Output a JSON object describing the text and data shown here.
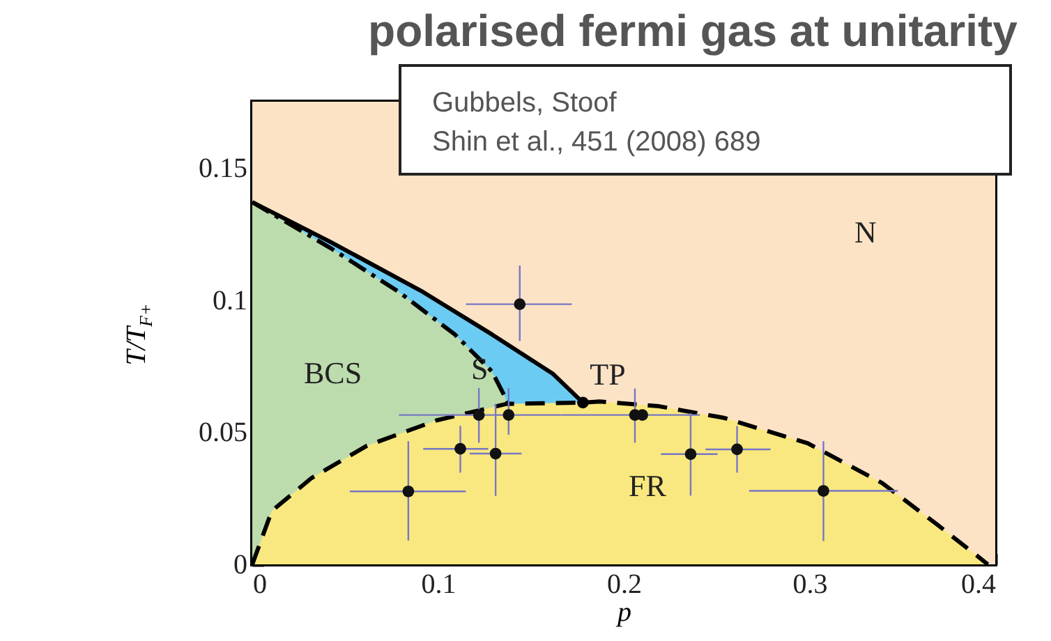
{
  "chart_data": {
    "type": "scatter",
    "title": "polarised fermi gas at unitarity",
    "xlabel": "p",
    "ylabel": "T/T$_{F+}$",
    "xlim": [
      0,
      0.4
    ],
    "ylim": [
      0,
      0.175
    ],
    "xticks": [
      0,
      0.1,
      0.2,
      0.3,
      0.4
    ],
    "yticks": [
      0,
      0.05,
      0.1,
      0.15
    ],
    "grid": false,
    "bands": [
      {
        "axis": "y",
        "from": 0,
        "to": 0.175,
        "color": "#fde3c6"
      }
    ],
    "series": [
      {
        "type": "area",
        "color": "#6ccbf2",
        "line_style": "solid",
        "x": [
          0,
          0.042,
          0.092,
          0.129,
          0.162,
          0.178
        ],
        "values": [
          0.137,
          0.122,
          0.103,
          0.087,
          0.072,
          0.0612
        ]
      },
      {
        "type": "area",
        "color": "#bcdcae",
        "line_style": "dotted",
        "x": [
          0,
          0.042,
          0.079,
          0.109,
          0.129,
          0.138
        ],
        "values": [
          0.137,
          0.1197,
          0.103,
          0.087,
          0.073,
          0.0607
        ]
      },
      {
        "type": "area",
        "color": "#f9e87f",
        "line_style": "dashed",
        "x": [
          0,
          0.0105,
          0.0318,
          0.0618,
          0.0993,
          0.137,
          0.178,
          0.187,
          0.219,
          0.254,
          0.299,
          0.339,
          0.369,
          0.393,
          0.396
        ],
        "values": [
          0,
          0.0202,
          0.0326,
          0.0449,
          0.0545,
          0.0607,
          0.0612,
          0.0616,
          0.0598,
          0.0554,
          0.0458,
          0.0308,
          0.0149,
          0.0017,
          0
        ]
      },
      {
        "color": "#111111",
        "marker": "circle",
        "x": [
          0.084,
          0.112,
          0.122,
          0.138,
          0.131,
          0.144,
          0.206,
          0.21,
          0.236,
          0.261,
          0.3075
        ],
        "values": [
          0.0276,
          0.0437,
          0.0565,
          0.0565,
          0.0419,
          0.0984,
          0.0565,
          0.0565,
          0.0417,
          0.0435,
          0.0278
        ],
        "errors": [
          [
            0.009,
            0.0466
          ],
          [
            0.0347,
            0.0524
          ],
          [
            0.046,
            0.0667
          ],
          [
            0.049,
            0.0667
          ],
          [
            0.0259,
            0.0607
          ],
          [
            0.0845,
            0.113
          ],
          [
            0.046,
            0.0665
          ],
          null,
          [
            0.026,
            0.0572
          ],
          [
            0.0347,
            0.0523
          ],
          [
            0.0088,
            0.0466
          ]
        ],
        "xerrors": [
          [
            0.0525,
            0.115
          ],
          [
            0.092,
            0.127
          ],
          [
            0.079,
            0.166
          ],
          null,
          [
            0.117,
            0.145
          ],
          [
            0.115,
            0.172
          ],
          [
            0.166,
            0.241
          ],
          null,
          [
            0.22,
            0.2505
          ],
          [
            0.244,
            0.279
          ],
          [
            0.2675,
            0.3475
          ]
        ]
      },
      {
        "color": "#000000",
        "marker": "circle",
        "x": [
          0.178
        ],
        "values": [
          0.0612
        ]
      }
    ],
    "annotations": [
      {
        "text": "TP",
        "x": 0.178,
        "y": 0.0612
      },
      "BCS",
      "S",
      "N",
      "FR",
      "Gubbels, Stoof",
      "Shin et al., 451 (2008) 689"
    ]
  }
}
